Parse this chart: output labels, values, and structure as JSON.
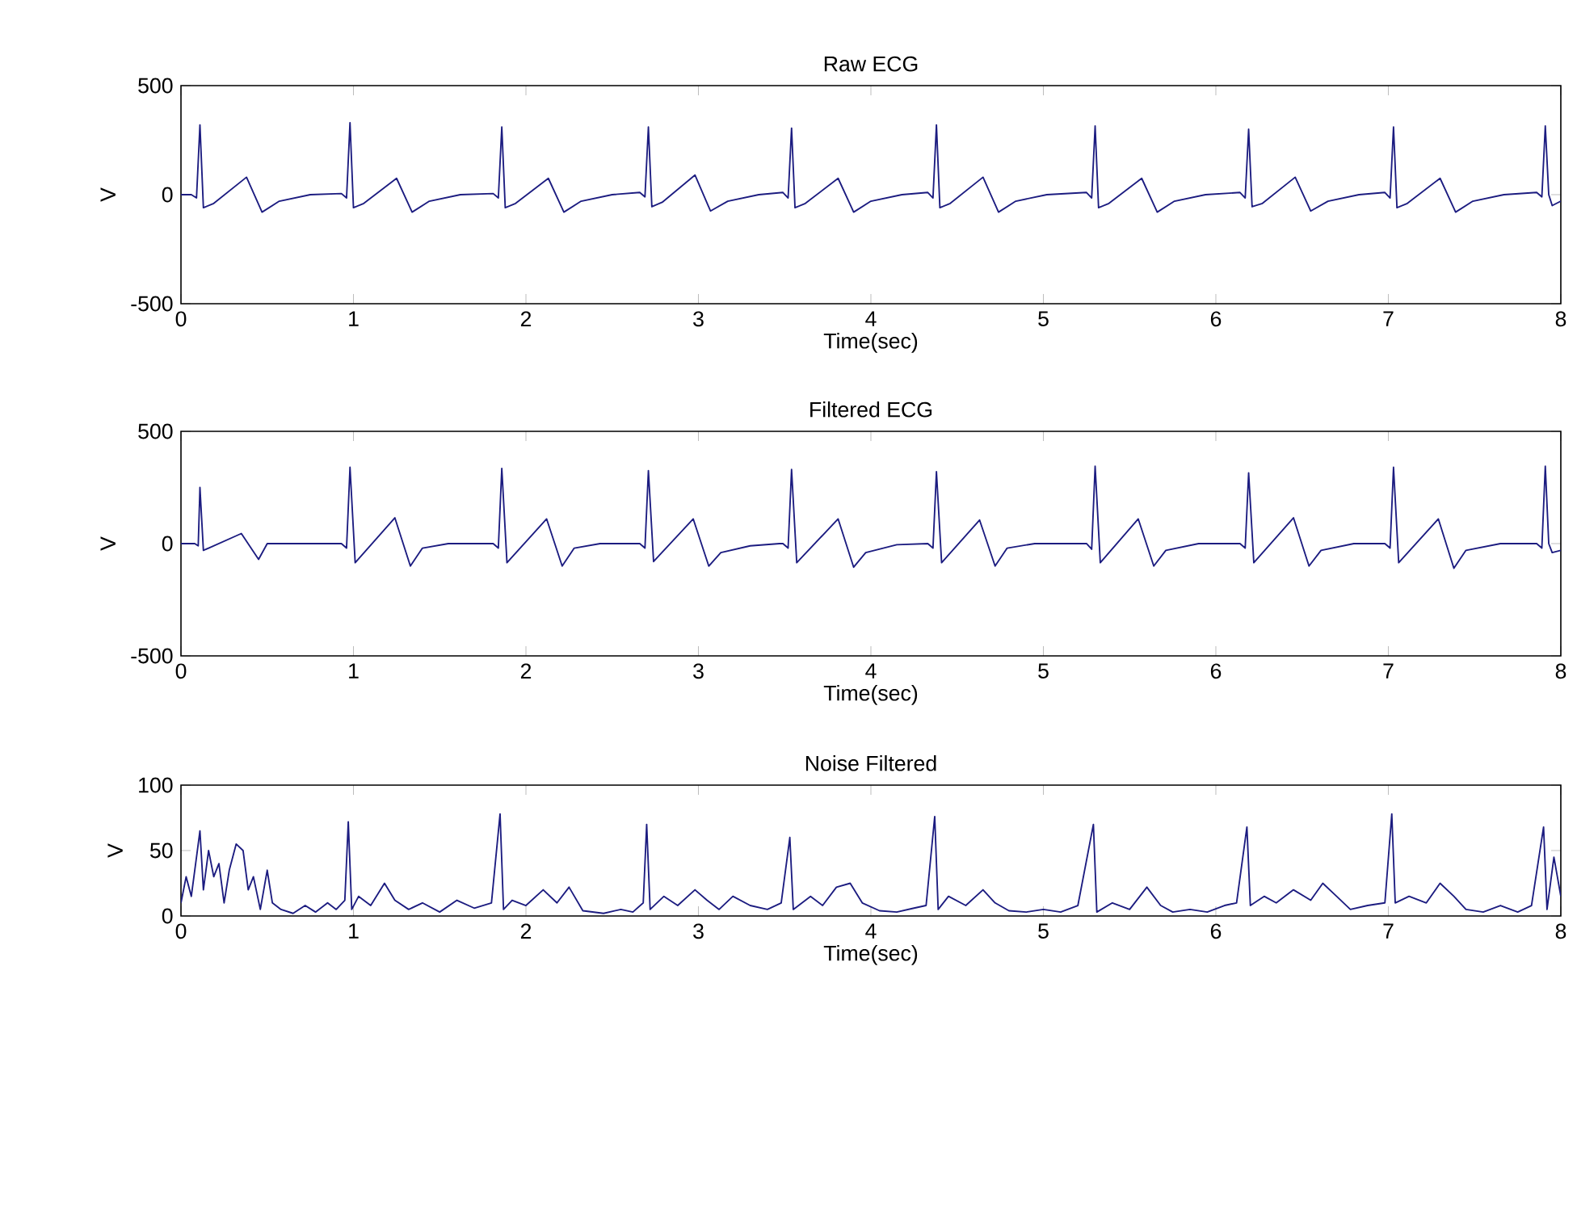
{
  "chart_data": [
    {
      "type": "line",
      "title": "Raw ECG",
      "xlabel": "Time(sec)",
      "ylabel": "V",
      "color": "#1c1c80",
      "xlim": [
        0,
        8
      ],
      "xticks": [
        0,
        1,
        2,
        3,
        4,
        5,
        6,
        7,
        8
      ],
      "ylim": [
        -500,
        500
      ],
      "yticks": [
        -500,
        0,
        500
      ],
      "x": [
        0,
        0.06,
        0.09,
        0.11,
        0.13,
        0.19,
        0.38,
        0.47,
        0.57,
        0.75,
        0.93,
        0.96,
        0.98,
        1.0,
        1.06,
        1.25,
        1.34,
        1.44,
        1.62,
        1.81,
        1.84,
        1.86,
        1.88,
        1.94,
        2.13,
        2.22,
        2.32,
        2.5,
        2.66,
        2.69,
        2.71,
        2.73,
        2.79,
        2.98,
        3.07,
        3.17,
        3.35,
        3.49,
        3.52,
        3.54,
        3.56,
        3.62,
        3.81,
        3.9,
        4.0,
        4.18,
        4.33,
        4.36,
        4.38,
        4.4,
        4.46,
        4.65,
        4.74,
        4.84,
        5.02,
        5.25,
        5.28,
        5.3,
        5.32,
        5.38,
        5.57,
        5.66,
        5.76,
        5.94,
        6.14,
        6.17,
        6.19,
        6.21,
        6.27,
        6.46,
        6.55,
        6.65,
        6.83,
        6.98,
        7.01,
        7.03,
        7.05,
        7.11,
        7.3,
        7.39,
        7.49,
        7.67,
        7.86,
        7.89,
        7.91,
        7.93,
        7.95,
        8.0
      ],
      "values": [
        0,
        0,
        -15,
        320,
        -60,
        -40,
        80,
        -80,
        -30,
        0,
        5,
        -15,
        330,
        -60,
        -40,
        75,
        -80,
        -30,
        0,
        5,
        -15,
        310,
        -60,
        -40,
        75,
        -80,
        -30,
        0,
        10,
        -10,
        310,
        -55,
        -35,
        90,
        -75,
        -30,
        0,
        10,
        -15,
        305,
        -60,
        -40,
        75,
        -80,
        -30,
        0,
        10,
        -15,
        320,
        -60,
        -40,
        80,
        -80,
        -30,
        0,
        10,
        -15,
        315,
        -60,
        -40,
        75,
        -80,
        -30,
        0,
        10,
        -15,
        300,
        -55,
        -40,
        80,
        -75,
        -30,
        0,
        10,
        -15,
        310,
        -60,
        -40,
        75,
        -80,
        -30,
        0,
        10,
        -10,
        315,
        0,
        -50,
        -30
      ]
    },
    {
      "type": "line",
      "title": "Filtered ECG",
      "xlabel": "Time(sec)",
      "ylabel": "V",
      "color": "#1c1c80",
      "xlim": [
        0,
        8
      ],
      "xticks": [
        0,
        1,
        2,
        3,
        4,
        5,
        6,
        7,
        8
      ],
      "ylim": [
        -500,
        500
      ],
      "yticks": [
        -500,
        0,
        500
      ],
      "x": [
        0,
        0.08,
        0.1,
        0.11,
        0.13,
        0.16,
        0.35,
        0.45,
        0.5,
        0.93,
        0.96,
        0.98,
        1.01,
        1.24,
        1.33,
        1.4,
        1.55,
        1.81,
        1.84,
        1.86,
        1.89,
        2.12,
        2.21,
        2.28,
        2.43,
        2.66,
        2.69,
        2.71,
        2.74,
        2.97,
        3.06,
        3.13,
        3.3,
        3.47,
        3.49,
        3.52,
        3.54,
        3.57,
        3.81,
        3.9,
        3.97,
        4.15,
        4.33,
        4.36,
        4.38,
        4.41,
        4.63,
        4.72,
        4.79,
        4.95,
        5.25,
        5.28,
        5.3,
        5.33,
        5.55,
        5.64,
        5.71,
        5.9,
        6.14,
        6.17,
        6.19,
        6.22,
        6.45,
        6.54,
        6.61,
        6.8,
        6.98,
        7.01,
        7.03,
        7.06,
        7.29,
        7.38,
        7.45,
        7.65,
        7.86,
        7.89,
        7.91,
        7.93,
        7.95,
        8.0
      ],
      "values": [
        0,
        0,
        -10,
        250,
        -30,
        -20,
        45,
        -70,
        0,
        0,
        -20,
        340,
        -85,
        115,
        -100,
        -20,
        0,
        0,
        -20,
        335,
        -85,
        110,
        -100,
        -20,
        0,
        0,
        -20,
        325,
        -80,
        110,
        -100,
        -40,
        -10,
        0,
        0,
        -20,
        330,
        -85,
        110,
        -105,
        -40,
        -5,
        0,
        -20,
        320,
        -85,
        105,
        -100,
        -20,
        0,
        0,
        -25,
        345,
        -85,
        110,
        -100,
        -30,
        0,
        0,
        -20,
        315,
        -85,
        115,
        -100,
        -30,
        0,
        0,
        -20,
        340,
        -85,
        110,
        -110,
        -30,
        0,
        0,
        -20,
        345,
        0,
        -40,
        -30
      ]
    },
    {
      "type": "line",
      "title": "Noise Filtered",
      "xlabel": "Time(sec)",
      "ylabel": "V",
      "color": "#1c1c80",
      "xlim": [
        0,
        8
      ],
      "xticks": [
        0,
        1,
        2,
        3,
        4,
        5,
        6,
        7,
        8
      ],
      "ylim": [
        0,
        100
      ],
      "yticks": [
        0,
        50,
        100
      ],
      "x": [
        0,
        0.03,
        0.06,
        0.09,
        0.11,
        0.13,
        0.16,
        0.19,
        0.22,
        0.25,
        0.28,
        0.32,
        0.36,
        0.39,
        0.42,
        0.46,
        0.5,
        0.53,
        0.58,
        0.65,
        0.72,
        0.78,
        0.85,
        0.9,
        0.95,
        0.97,
        0.99,
        1.03,
        1.1,
        1.18,
        1.24,
        1.32,
        1.4,
        1.5,
        1.6,
        1.7,
        1.8,
        1.85,
        1.87,
        1.92,
        2.0,
        2.1,
        2.18,
        2.25,
        2.33,
        2.45,
        2.55,
        2.62,
        2.68,
        2.7,
        2.72,
        2.8,
        2.88,
        2.98,
        3.05,
        3.12,
        3.2,
        3.3,
        3.4,
        3.48,
        3.53,
        3.55,
        3.65,
        3.72,
        3.8,
        3.88,
        3.95,
        4.05,
        4.15,
        4.25,
        4.32,
        4.37,
        4.39,
        4.45,
        4.55,
        4.65,
        4.72,
        4.8,
        4.9,
        5.0,
        5.1,
        5.2,
        5.29,
        5.31,
        5.4,
        5.5,
        5.6,
        5.68,
        5.75,
        5.85,
        5.95,
        6.05,
        6.12,
        6.18,
        6.2,
        6.28,
        6.35,
        6.45,
        6.55,
        6.62,
        6.7,
        6.78,
        6.88,
        6.98,
        7.02,
        7.04,
        7.12,
        7.22,
        7.3,
        7.38,
        7.45,
        7.55,
        7.65,
        7.75,
        7.83,
        7.9,
        7.92,
        7.96,
        8.0
      ],
      "values": [
        10,
        30,
        15,
        45,
        65,
        20,
        50,
        30,
        40,
        10,
        35,
        55,
        50,
        20,
        30,
        5,
        35,
        10,
        5,
        2,
        8,
        3,
        10,
        5,
        12,
        72,
        5,
        15,
        8,
        25,
        12,
        5,
        10,
        3,
        12,
        6,
        10,
        78,
        5,
        12,
        8,
        20,
        10,
        22,
        4,
        2,
        5,
        3,
        10,
        70,
        5,
        15,
        8,
        20,
        12,
        5,
        15,
        8,
        5,
        10,
        60,
        5,
        15,
        8,
        22,
        25,
        10,
        4,
        3,
        6,
        8,
        76,
        5,
        15,
        8,
        20,
        10,
        4,
        3,
        5,
        3,
        8,
        70,
        3,
        10,
        5,
        22,
        8,
        3,
        5,
        3,
        8,
        10,
        68,
        8,
        15,
        10,
        20,
        12,
        25,
        15,
        5,
        8,
        10,
        78,
        10,
        15,
        10,
        25,
        15,
        5,
        3,
        8,
        3,
        8,
        68,
        5,
        45,
        15
      ]
    }
  ]
}
